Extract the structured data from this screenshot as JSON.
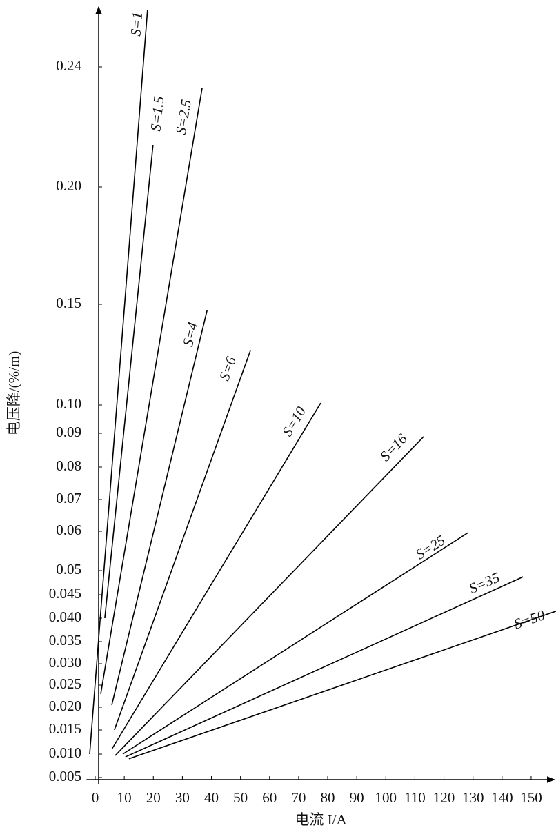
{
  "chart_data": {
    "type": "line",
    "xlabel": "电流 I/A",
    "ylabel": "电压降/(%/m)",
    "xlim": [
      -3,
      158
    ],
    "xticks": [
      0,
      10,
      20,
      30,
      40,
      50,
      60,
      70,
      80,
      90,
      100,
      110,
      120,
      130,
      140,
      150
    ],
    "ylim": [
      0.005,
      0.26
    ],
    "yticks": [
      0.005,
      {
        "value": 0.01,
        "label": "0.010"
      },
      0.015,
      {
        "value": 0.02,
        "label": "0.020"
      },
      0.025,
      {
        "value": 0.03,
        "label": "0.030"
      },
      0.035,
      {
        "value": 0.04,
        "label": "0.040"
      },
      0.045,
      0.05,
      0.06,
      0.07,
      0.08,
      0.09,
      {
        "value": 0.1,
        "label": "0.10"
      },
      0.15,
      {
        "value": 0.2,
        "label": "0.20"
      },
      0.24
    ],
    "grid": false,
    "series": [
      {
        "name": "S=1",
        "color": "#000000",
        "x": [
          -1.9,
          18
        ],
        "values": [
          0.01,
          0.259
        ]
      },
      {
        "name": "S=1.5",
        "color": "#000000",
        "x": [
          3.3,
          19.9
        ],
        "values": [
          0.04,
          0.214
        ]
      },
      {
        "name": "S=2.5",
        "color": "#000000",
        "x": [
          1.9,
          36.8
        ],
        "values": [
          0.023,
          0.233
        ]
      },
      {
        "name": "S=4",
        "color": "#000000",
        "x": [
          5.7,
          38.5
        ],
        "values": [
          0.0205,
          0.147
        ]
      },
      {
        "name": "S=6",
        "color": "#000000",
        "x": [
          6.6,
          53.4
        ],
        "values": [
          0.015,
          0.127
        ]
      },
      {
        "name": "S=10",
        "color": "#000000",
        "x": [
          5.7,
          77.6
        ],
        "values": [
          0.011,
          0.101
        ]
      },
      {
        "name": "S=16",
        "color": "#000000",
        "x": [
          6.9,
          113
        ],
        "values": [
          0.0097,
          0.089
        ]
      },
      {
        "name": "S=25",
        "color": "#000000",
        "x": [
          9.5,
          128.2
        ],
        "values": [
          0.01,
          0.0596
        ]
      },
      {
        "name": "S=35",
        "color": "#000000",
        "x": [
          10.4,
          147.2
        ],
        "values": [
          0.0094,
          0.0487
        ]
      },
      {
        "name": "S=50",
        "color": "#000000",
        "x": [
          11.6,
          158.6
        ],
        "values": [
          0.009,
          0.0415
        ]
      }
    ]
  }
}
